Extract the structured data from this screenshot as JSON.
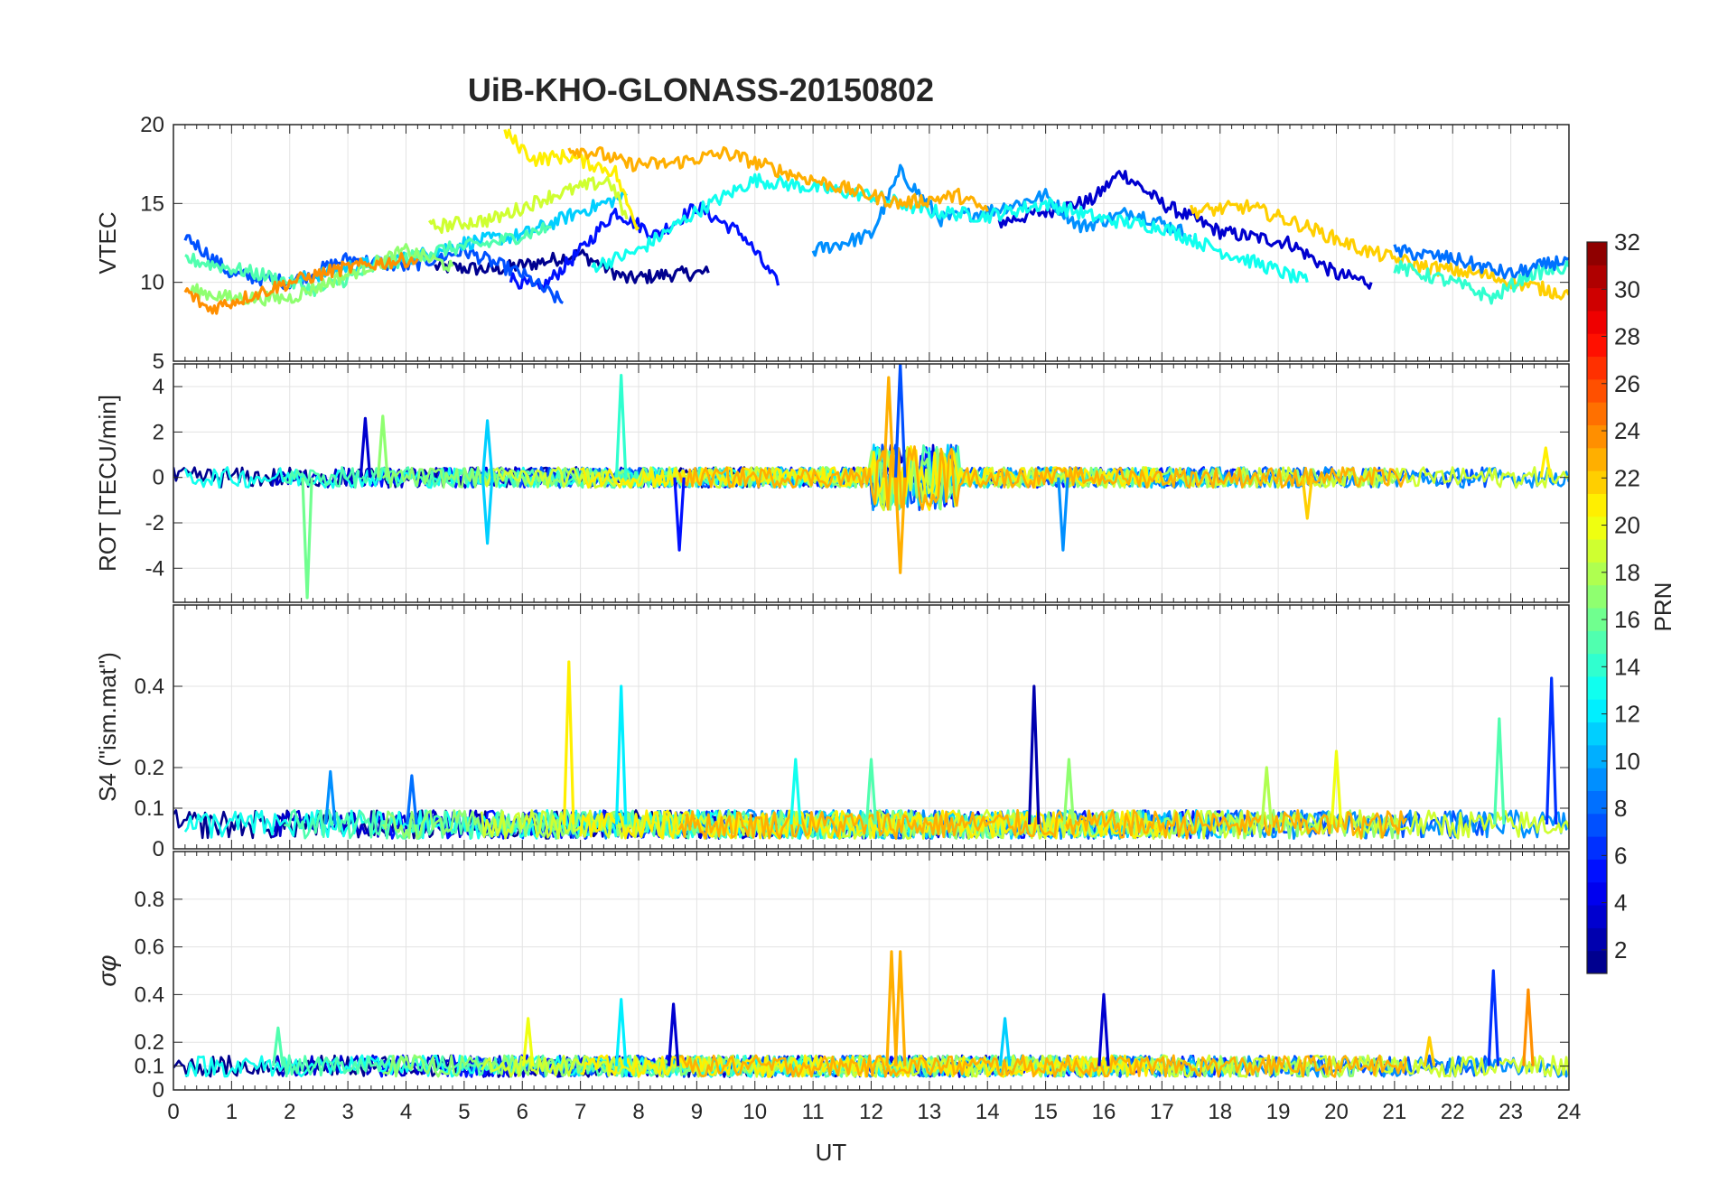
{
  "title": "UiB-KHO-GLONASS-20150802",
  "colorbar": {
    "label": "PRN",
    "range": [
      1,
      32
    ],
    "ticks": [
      "2",
      "4",
      "6",
      "8",
      "10",
      "12",
      "14",
      "16",
      "18",
      "20",
      "22",
      "24",
      "26",
      "28",
      "30",
      "32"
    ]
  },
  "chart_data": [
    {
      "type": "line",
      "panel": "vtec",
      "ylabel": "VTEC",
      "ylim": [
        5,
        20
      ],
      "yticks": [
        5,
        10,
        15,
        20
      ],
      "ytick_labels": [
        "5",
        "10",
        "15",
        "20"
      ],
      "xlim": [
        0,
        24
      ],
      "grid": true,
      "series_note": "one colored trace per GLONASS PRN; values estimated",
      "series": [
        {
          "name": "PRN 1",
          "x": [
            4.5,
            5.5,
            6.2,
            7.0,
            7.8,
            8.5,
            9.2
          ],
          "y": [
            11.0,
            10.8,
            11.2,
            11.8,
            10.2,
            10.5,
            10.6
          ]
        },
        {
          "name": "PRN 3",
          "x": [
            14.2,
            15.0,
            15.8,
            16.3,
            17.0,
            18.0,
            19.2,
            20.0,
            20.6
          ],
          "y": [
            13.8,
            14.5,
            15.2,
            17.0,
            15.0,
            13.2,
            12.5,
            10.5,
            10.0
          ]
        },
        {
          "name": "PRN 5",
          "x": [
            5.8,
            6.3,
            7.0,
            7.6,
            8.3,
            9.0,
            9.8,
            10.4
          ],
          "y": [
            10.3,
            9.5,
            12.0,
            14.5,
            13.0,
            14.8,
            13.0,
            9.8
          ]
        },
        {
          "name": "PRN 7",
          "x": [
            0.2,
            1.0,
            2.0,
            3.0,
            4.0,
            5.0,
            6.0,
            6.7
          ],
          "y": [
            13.0,
            10.5,
            10.0,
            11.5,
            11.0,
            12.0,
            10.5,
            8.7
          ]
        },
        {
          "name": "PRN 9",
          "x": [
            11.0,
            12.0,
            12.5,
            13.2,
            14.0,
            15.0,
            15.6,
            16.5,
            17.5
          ],
          "y": [
            12.0,
            13.0,
            17.0,
            14.0,
            14.5,
            15.5,
            13.5,
            14.5,
            13.0
          ]
        },
        {
          "name": "PRN 11",
          "x": [
            2.0,
            3.0,
            4.0,
            5.0,
            6.0,
            7.0,
            7.8
          ],
          "y": [
            10.0,
            11.0,
            11.5,
            12.5,
            13.0,
            14.5,
            15.5
          ]
        },
        {
          "name": "PRN 13",
          "x": [
            7.2,
            8.0,
            9.0,
            10.0,
            11.0,
            12.0,
            13.0,
            14.0,
            15.0,
            16.0,
            17.0,
            18.0,
            18.8,
            19.5
          ],
          "y": [
            11.0,
            12.0,
            14.5,
            16.5,
            16.0,
            15.5,
            14.5,
            14.2,
            15.0,
            14.0,
            13.5,
            12.0,
            11.0,
            10.0
          ]
        },
        {
          "name": "PRN 15",
          "x": [
            0.2,
            1.5,
            2.5,
            3.5,
            4.5,
            5.5,
            6.5
          ],
          "y": [
            11.5,
            10.5,
            9.5,
            11.0,
            12.0,
            12.5,
            13.5
          ]
        },
        {
          "name": "PRN 17",
          "x": [
            0.3,
            1.0,
            2.0,
            3.0,
            4.0,
            4.8
          ],
          "y": [
            9.5,
            9.0,
            9.0,
            10.5,
            12.0,
            11.0
          ]
        },
        {
          "name": "PRN 19",
          "x": [
            4.4,
            5.5,
            6.5,
            7.5,
            7.8
          ],
          "y": [
            13.5,
            14.0,
            15.5,
            16.5,
            14.0
          ]
        },
        {
          "name": "PRN 21",
          "x": [
            5.7,
            6.2,
            6.8,
            7.2,
            7.6,
            7.8,
            8.0
          ],
          "y": [
            19.5,
            17.8,
            18.0,
            17.5,
            17.0,
            15.0,
            13.5
          ]
        },
        {
          "name": "PRN 23",
          "x": [
            6.8,
            7.3,
            7.8,
            8.5,
            9.5,
            10.5,
            11.5,
            12.5,
            13.5,
            14.0
          ],
          "y": [
            18.5,
            18.2,
            17.5,
            17.5,
            18.2,
            17.0,
            16.0,
            15.0,
            15.5,
            14.5
          ]
        },
        {
          "name": "PRN 24",
          "x": [
            0.2,
            0.6,
            1.2,
            2.0,
            2.8,
            3.5,
            4.2
          ],
          "y": [
            9.5,
            8.3,
            9.0,
            10.0,
            10.8,
            11.2,
            11.5
          ]
        },
        {
          "name": "PRN 22",
          "x": [
            17.5,
            18.5,
            19.5,
            20.5,
            21.5,
            22.5,
            23.3,
            24.0
          ],
          "y": [
            14.5,
            14.8,
            13.5,
            12.0,
            11.0,
            10.5,
            9.8,
            9.2
          ]
        },
        {
          "name": "PRN 14",
          "x": [
            21.0,
            22.0,
            22.7,
            23.3,
            24.0
          ],
          "y": [
            11.0,
            10.0,
            9.0,
            10.5,
            11.0
          ]
        },
        {
          "name": "PRN 8",
          "x": [
            21.0,
            22.0,
            23.0,
            24.0
          ],
          "y": [
            12.0,
            11.5,
            10.5,
            11.5
          ]
        }
      ]
    },
    {
      "type": "line",
      "panel": "rot",
      "ylabel": "ROT [TECU/min]",
      "ylim": [
        -5.5,
        5
      ],
      "yticks": [
        -4,
        -2,
        0,
        2,
        4
      ],
      "ytick_labels": [
        "-4",
        "-2",
        "0",
        "2",
        "4"
      ],
      "xlim": [
        0,
        24
      ],
      "grid": true,
      "series_note": "noisy traces around 0 with bursts near 12-13 UT; values estimated",
      "spikes": [
        {
          "name": "PRN 16",
          "x": 2.3,
          "y": -5.3
        },
        {
          "name": "PRN 3",
          "x": 3.3,
          "y": 2.6
        },
        {
          "name": "PRN 17",
          "x": 3.6,
          "y": 2.7
        },
        {
          "name": "PRN 11",
          "x": 5.4,
          "y": 2.5
        },
        {
          "name": "PRN 11",
          "x": 5.4,
          "y": -2.9
        },
        {
          "name": "PRN 14",
          "x": 7.7,
          "y": 4.5
        },
        {
          "name": "PRN 5",
          "x": 8.7,
          "y": -3.2
        },
        {
          "name": "PRN 23",
          "x": 12.3,
          "y": 4.4
        },
        {
          "name": "PRN 23",
          "x": 12.5,
          "y": -4.2
        },
        {
          "name": "PRN 7",
          "x": 12.5,
          "y": 5.0
        },
        {
          "name": "PRN 9",
          "x": 15.3,
          "y": -3.2
        },
        {
          "name": "PRN 22",
          "x": 19.5,
          "y": -1.8
        },
        {
          "name": "PRN 21",
          "x": 23.6,
          "y": 1.3
        }
      ]
    },
    {
      "type": "line",
      "panel": "s4",
      "ylabel": "S4 (\"ism.mat\")",
      "ylim": [
        0,
        0.6
      ],
      "yticks": [
        0,
        0.1,
        0.2,
        0.4
      ],
      "ytick_labels": [
        "0",
        "0.1",
        "0.2",
        "0.4"
      ],
      "xlim": [
        0,
        24
      ],
      "grid": true,
      "series_note": "baseline 0.03-0.12 with isolated peaks; values estimated",
      "spikes": [
        {
          "name": "PRN 21",
          "x": 6.8,
          "y": 0.46
        },
        {
          "name": "PRN 12",
          "x": 7.7,
          "y": 0.4
        },
        {
          "name": "PRN 2",
          "x": 14.8,
          "y": 0.4
        },
        {
          "name": "PRN 6",
          "x": 23.7,
          "y": 0.42
        },
        {
          "name": "PRN 15",
          "x": 22.8,
          "y": 0.32
        },
        {
          "name": "PRN 20",
          "x": 20.0,
          "y": 0.24
        },
        {
          "name": "PRN 13",
          "x": 10.7,
          "y": 0.22
        },
        {
          "name": "PRN 15",
          "x": 12.0,
          "y": 0.22
        },
        {
          "name": "PRN 8",
          "x": 4.1,
          "y": 0.18
        },
        {
          "name": "PRN 9",
          "x": 2.7,
          "y": 0.19
        },
        {
          "name": "PRN 17",
          "x": 15.4,
          "y": 0.22
        },
        {
          "name": "PRN 18",
          "x": 18.8,
          "y": 0.2
        }
      ]
    },
    {
      "type": "line",
      "panel": "sigma_phi",
      "ylabel": "σφ",
      "ylim": [
        0,
        1
      ],
      "yticks": [
        0,
        0.1,
        0.2,
        0.4,
        0.6,
        0.8
      ],
      "ytick_labels": [
        "0",
        "0.1",
        "0.2",
        "0.4",
        "0.6",
        "0.8"
      ],
      "xlim": [
        0,
        24
      ],
      "xticks": [
        0,
        1,
        2,
        3,
        4,
        5,
        6,
        7,
        8,
        9,
        10,
        11,
        12,
        13,
        14,
        15,
        16,
        17,
        18,
        19,
        20,
        21,
        22,
        23,
        24
      ],
      "xtick_labels": [
        "0",
        "1",
        "2",
        "3",
        "4",
        "5",
        "6",
        "7",
        "8",
        "9",
        "10",
        "11",
        "12",
        "13",
        "14",
        "15",
        "16",
        "17",
        "18",
        "19",
        "20",
        "21",
        "22",
        "23",
        "24"
      ],
      "xlabel": "UT",
      "grid": true,
      "series_note": "baseline 0.07-0.2 with isolated peaks; values estimated",
      "spikes": [
        {
          "name": "PRN 23",
          "x": 12.35,
          "y": 0.58
        },
        {
          "name": "PRN 23",
          "x": 12.5,
          "y": 0.58
        },
        {
          "name": "PRN 12",
          "x": 7.7,
          "y": 0.38
        },
        {
          "name": "PRN 3",
          "x": 8.6,
          "y": 0.36
        },
        {
          "name": "PRN 6",
          "x": 22.7,
          "y": 0.5
        },
        {
          "name": "PRN 24",
          "x": 23.3,
          "y": 0.42
        },
        {
          "name": "PRN 3",
          "x": 16.0,
          "y": 0.4
        },
        {
          "name": "PRN 20",
          "x": 6.1,
          "y": 0.3
        },
        {
          "name": "PRN 11",
          "x": 14.3,
          "y": 0.3
        },
        {
          "name": "PRN 15",
          "x": 1.8,
          "y": 0.26
        },
        {
          "name": "PRN 22",
          "x": 21.6,
          "y": 0.22
        }
      ]
    }
  ]
}
